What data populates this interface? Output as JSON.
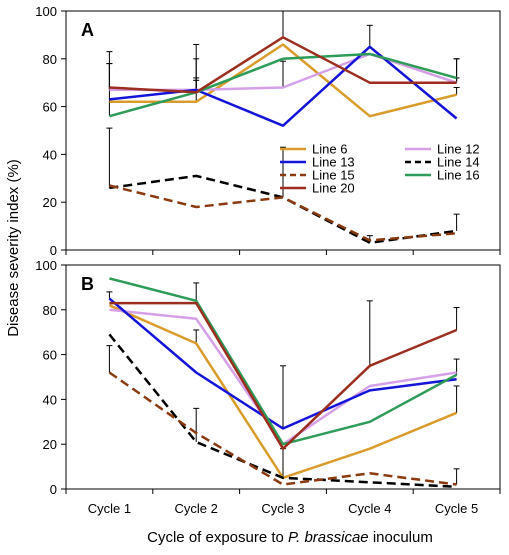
{
  "chart_data": [
    {
      "type": "line",
      "panel_label": "A",
      "categories": [
        "Cycle 1",
        "Cycle 2",
        "Cycle 3",
        "Cycle 4",
        "Cycle 5"
      ],
      "ylim": [
        0,
        100
      ],
      "yticks": [
        0,
        20,
        40,
        60,
        80,
        100
      ],
      "grid": false,
      "legend": "inside-right",
      "series": [
        {
          "name": "Line 6",
          "color": "#d99b2b",
          "dash": "solid",
          "values": [
            62,
            62,
            86,
            56,
            65
          ],
          "err": [
            null,
            9,
            null,
            null,
            3
          ]
        },
        {
          "name": "Line 12",
          "color": "#d6a0e8",
          "dash": "solid",
          "values": [
            67,
            67,
            68,
            82,
            70
          ],
          "err": [
            11,
            5,
            11,
            null,
            2
          ]
        },
        {
          "name": "Line 13",
          "color": "#1414d8",
          "dash": "solid",
          "values": [
            63,
            67,
            52,
            85,
            55
          ],
          "err": [
            null,
            null,
            null,
            9,
            null
          ]
        },
        {
          "name": "Line 14",
          "color": "#000000",
          "dash": "dashed",
          "values": [
            26,
            31,
            22,
            3,
            8
          ],
          "err": [
            25,
            null,
            21,
            3,
            7
          ]
        },
        {
          "name": "Line 15",
          "color": "#8b3a10",
          "dash": "dashed",
          "values": [
            27,
            18,
            22,
            4,
            7
          ],
          "err": [
            null,
            null,
            null,
            null,
            null
          ]
        },
        {
          "name": "Line 16",
          "color": "#2e9b58",
          "dash": "solid",
          "values": [
            56,
            66,
            80,
            82,
            72
          ],
          "err": [
            22,
            14,
            null,
            null,
            8
          ]
        },
        {
          "name": "Line 20",
          "color": "#9b2e1e",
          "dash": "solid",
          "values": [
            68,
            66,
            89,
            70,
            70
          ],
          "err": [
            15,
            20,
            16,
            null,
            10
          ]
        }
      ]
    },
    {
      "type": "line",
      "panel_label": "B",
      "categories": [
        "Cycle 1",
        "Cycle 2",
        "Cycle 3",
        "Cycle 4",
        "Cycle 5"
      ],
      "ylim": [
        0,
        100
      ],
      "yticks": [
        0,
        20,
        40,
        60,
        80,
        100
      ],
      "grid": false,
      "series": [
        {
          "name": "Line 6",
          "color": "#d99b2b",
          "dash": "solid",
          "values": [
            82,
            65,
            5,
            18,
            34
          ],
          "err": [
            null,
            6,
            null,
            null,
            12
          ]
        },
        {
          "name": "Line 12",
          "color": "#d6a0e8",
          "dash": "solid",
          "values": [
            80,
            76,
            20,
            46,
            52
          ],
          "err": [
            null,
            null,
            null,
            null,
            null
          ]
        },
        {
          "name": "Line 13",
          "color": "#1414d8",
          "dash": "solid",
          "values": [
            85,
            52,
            27,
            44,
            49
          ],
          "err": [
            3,
            null,
            28,
            null,
            null
          ]
        },
        {
          "name": "Line 14",
          "color": "#000000",
          "dash": "dashed",
          "values": [
            69,
            21,
            5,
            3,
            1
          ],
          "err": [
            null,
            15,
            13,
            null,
            null
          ]
        },
        {
          "name": "Line 15",
          "color": "#8b3a10",
          "dash": "dashed",
          "values": [
            52,
            25,
            2,
            7,
            2
          ],
          "err": [
            12,
            null,
            null,
            null,
            7
          ]
        },
        {
          "name": "Line 16",
          "color": "#2e9b58",
          "dash": "solid",
          "values": [
            94,
            84,
            20,
            30,
            51
          ],
          "err": [
            null,
            null,
            null,
            null,
            7
          ]
        },
        {
          "name": "Line 20",
          "color": "#9b2e1e",
          "dash": "solid",
          "values": [
            83,
            83,
            18,
            55,
            71
          ],
          "err": [
            null,
            9,
            null,
            29,
            10
          ]
        }
      ]
    }
  ],
  "axes": {
    "ylabel": "Disease severity index (%)",
    "xlabel_prefix": "Cycle of exposure to ",
    "xlabel_italic": "P. brassicae",
    "xlabel_suffix": " inoculum"
  }
}
